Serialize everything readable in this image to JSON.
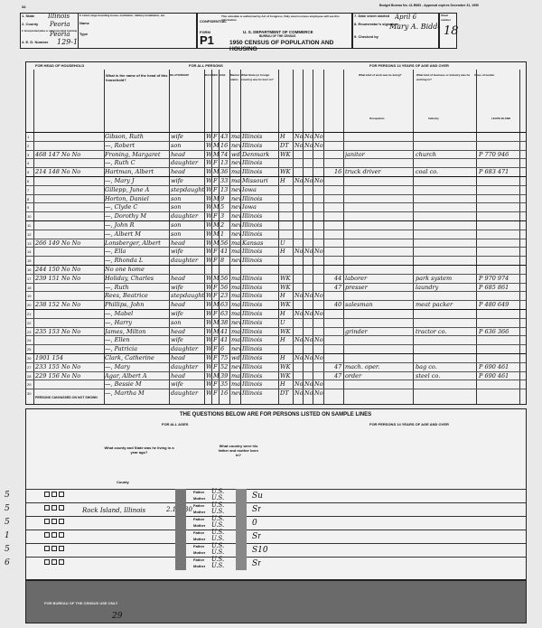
{
  "header": {
    "budget_note": "Budget Bureau No. 41-R683 - Approval expires December 31, 1950",
    "page_mark": "34",
    "state_label": "1. State",
    "state": "Illinois",
    "county_label": "2. County",
    "county": "Peoria",
    "city_label": "3. Incorporated place or unincorporated township",
    "city": "Peoria",
    "ed_label": "4. E. D. Number",
    "ed": "129-160",
    "hotel_label": "6. Hotel, large boarding house, institution, military installation, etc.",
    "name_label": "Name",
    "type_label": "Type",
    "confidential": "CONFIDENTIAL",
    "confidential_note": "This schedule is authorized by Act of Congress. Only sworn census employees will see this information.",
    "form_label": "FORM",
    "form": "P1",
    "dept": "U. S. DEPARTMENT OF COMMERCE",
    "bureau": "BUREAU OF THE CENSUS",
    "title": "1950 CENSUS OF POPULATION AND HOUSING",
    "date_label": "7. Date sheet started",
    "date": "April 6",
    "enumerator_label": "8. Enumerator's signature",
    "enumerator": "Mary A. Bidder",
    "checked_label": "9. Checked by",
    "sheet_label": "Sheet number",
    "sheet": "18"
  },
  "sections": {
    "household": "FOR HEAD OF HOUSEHOLD",
    "all_persons": "FOR ALL PERSONS",
    "over14": "FOR PERSONS 14 YEARS OF AGE AND OVER",
    "name_col": "What is the name of the head of this household?",
    "relationship_col": "RELATIONSHIP",
    "race_col": "RACE",
    "sex_col": "SEX",
    "age_col": "AGE",
    "marital_col": "Marital status",
    "birthplace_col": "What State (or foreign country) was he born in?",
    "occupation_col": "What kind of work was he doing?",
    "industry_col": "What kind of business or industry was he working in?",
    "class_col": "Class of worker",
    "leave_blank": "LEAVE BLANK",
    "occupation_sub": "Occupation",
    "industry_sub": "Industry",
    "persons_end": "PERSONS CANVASSED ON NOT SHOWN"
  },
  "persons": [
    {
      "line": "1",
      "dwell": "",
      "name": "Gibson, Ruth",
      "rel": "wife",
      "race": "W",
      "sex": "F",
      "age": "43",
      "mar": "mar",
      "birth": "Illinois",
      "c15": "H",
      "c16": "No",
      "c17": "No",
      "c18": "No",
      "hrs": "",
      "occ": "",
      "ind": "",
      "code": ""
    },
    {
      "line": "2",
      "dwell": "",
      "name": "—, Robert",
      "rel": "son",
      "race": "W",
      "sex": "M",
      "age": "16",
      "mar": "nev",
      "birth": "Illinois",
      "c15": "DT",
      "c16": "No",
      "c17": "No",
      "c18": "No",
      "hrs": "",
      "occ": "",
      "ind": "",
      "code": ""
    },
    {
      "line": "3",
      "dwell": "468 147 No No",
      "name": "Froning, Margaret",
      "rel": "head",
      "race": "W",
      "sex": "M",
      "age": "74",
      "mar": "wd",
      "birth": "Denmark",
      "c15": "WK",
      "c16": "",
      "c17": "",
      "c18": "",
      "hrs": "",
      "occ": "janitor",
      "ind": "church",
      "code": "P 770 946"
    },
    {
      "line": "4",
      "dwell": "",
      "name": "—, Ruth C",
      "rel": "daughter",
      "race": "W",
      "sex": "F",
      "age": "13",
      "mar": "nev",
      "birth": "Illinois",
      "c15": "",
      "c16": "",
      "c17": "",
      "c18": "",
      "hrs": "",
      "occ": "",
      "ind": "",
      "code": ""
    },
    {
      "line": "5",
      "dwell": "214 148 No No",
      "name": "Hartman, Albert",
      "rel": "head",
      "race": "W",
      "sex": "M",
      "age": "36",
      "mar": "mar",
      "birth": "Illinois",
      "c15": "WK",
      "c16": "",
      "c17": "",
      "c18": "",
      "hrs": "16",
      "occ": "truck driver",
      "ind": "coal co.",
      "code": "P 683 471"
    },
    {
      "line": "6",
      "dwell": "",
      "name": "—, Mary J",
      "rel": "wife",
      "race": "W",
      "sex": "F",
      "age": "33",
      "mar": "mar",
      "birth": "Missouri",
      "c15": "H",
      "c16": "No",
      "c17": "No",
      "c18": "No",
      "hrs": "",
      "occ": "",
      "ind": "",
      "code": ""
    },
    {
      "line": "7",
      "dwell": "",
      "name": "Gillepp, June A",
      "rel": "stepdaughter",
      "race": "W",
      "sex": "F",
      "age": "13",
      "mar": "nev",
      "birth": "Iowa",
      "c15": "",
      "c16": "",
      "c17": "",
      "c18": "",
      "hrs": "",
      "occ": "",
      "ind": "",
      "code": ""
    },
    {
      "line": "8",
      "dwell": "",
      "name": "Horton, Daniel",
      "rel": "son",
      "race": "W",
      "sex": "M",
      "age": "9",
      "mar": "nev",
      "birth": "Illinois",
      "c15": "",
      "c16": "",
      "c17": "",
      "c18": "",
      "hrs": "",
      "occ": "",
      "ind": "",
      "code": ""
    },
    {
      "line": "9",
      "dwell": "",
      "name": "—, Clyde C",
      "rel": "son",
      "race": "W",
      "sex": "M",
      "age": "5",
      "mar": "nev",
      "birth": "Iowa",
      "c15": "",
      "c16": "",
      "c17": "",
      "c18": "",
      "hrs": "",
      "occ": "",
      "ind": "",
      "code": ""
    },
    {
      "line": "10",
      "dwell": "",
      "name": "—, Dorothy M",
      "rel": "daughter",
      "race": "W",
      "sex": "F",
      "age": "3",
      "mar": "nev",
      "birth": "Illinois",
      "c15": "",
      "c16": "",
      "c17": "",
      "c18": "",
      "hrs": "",
      "occ": "",
      "ind": "",
      "code": ""
    },
    {
      "line": "11",
      "dwell": "",
      "name": "—, John R",
      "rel": "son",
      "race": "W",
      "sex": "M",
      "age": "2",
      "mar": "nev",
      "birth": "Illinois",
      "c15": "",
      "c16": "",
      "c17": "",
      "c18": "",
      "hrs": "",
      "occ": "",
      "ind": "",
      "code": ""
    },
    {
      "line": "12",
      "dwell": "",
      "name": "—, Albert M",
      "rel": "son",
      "race": "W",
      "sex": "M",
      "age": "1",
      "mar": "nev",
      "birth": "Illinois",
      "c15": "",
      "c16": "",
      "c17": "",
      "c18": "",
      "hrs": "",
      "occ": "",
      "ind": "",
      "code": ""
    },
    {
      "line": "13",
      "dwell": "266 149 No No",
      "name": "Lonsberger, Albert",
      "rel": "head",
      "race": "W",
      "sex": "M",
      "age": "56",
      "mar": "mar",
      "birth": "Kansas",
      "c15": "U",
      "c16": "",
      "c17": "",
      "c18": "",
      "hrs": "",
      "occ": "",
      "ind": "",
      "code": ""
    },
    {
      "line": "14",
      "dwell": "",
      "name": "—, Ella",
      "rel": "wife",
      "race": "W",
      "sex": "F",
      "age": "41",
      "mar": "mar",
      "birth": "Illinois",
      "c15": "H",
      "c16": "No",
      "c17": "No",
      "c18": "No",
      "hrs": "",
      "occ": "",
      "ind": "",
      "code": ""
    },
    {
      "line": "15",
      "dwell": "",
      "name": "—, Rhonda L",
      "rel": "daughter",
      "race": "W",
      "sex": "F",
      "age": "8",
      "mar": "nev",
      "birth": "Illinois",
      "c15": "",
      "c16": "",
      "c17": "",
      "c18": "",
      "hrs": "",
      "occ": "",
      "ind": "",
      "code": ""
    },
    {
      "line": "16",
      "dwell": "244 150 No No",
      "name": "No one home",
      "rel": "",
      "race": "",
      "sex": "",
      "age": "",
      "mar": "",
      "birth": "",
      "c15": "",
      "c16": "",
      "c17": "",
      "c18": "",
      "hrs": "",
      "occ": "",
      "ind": "",
      "code": ""
    },
    {
      "line": "17",
      "dwell": "239 151 No No",
      "name": "Holiday, Charles",
      "rel": "head",
      "race": "W",
      "sex": "M",
      "age": "56",
      "mar": "mar",
      "birth": "Illinois",
      "c15": "WK",
      "c16": "",
      "c17": "",
      "c18": "",
      "hrs": "44",
      "occ": "laborer",
      "ind": "park system",
      "code": "P 970 974"
    },
    {
      "line": "18",
      "dwell": "",
      "name": "—, Ruth",
      "rel": "wife",
      "race": "W",
      "sex": "F",
      "age": "56",
      "mar": "mar",
      "birth": "Illinois",
      "c15": "WK",
      "c16": "",
      "c17": "",
      "c18": "",
      "hrs": "47",
      "occ": "presser",
      "ind": "laundry",
      "code": "P 685 861"
    },
    {
      "line": "19",
      "dwell": "",
      "name": "Rees, Beatrice",
      "rel": "stepdaughter",
      "race": "W",
      "sex": "F",
      "age": "23",
      "mar": "mar",
      "birth": "Illinois",
      "c15": "H",
      "c16": "No",
      "c17": "No",
      "c18": "No",
      "hrs": "",
      "occ": "",
      "ind": "",
      "code": ""
    },
    {
      "line": "20",
      "dwell": "238 152 No No",
      "name": "Phillips, John",
      "rel": "head",
      "race": "W",
      "sex": "M",
      "age": "63",
      "mar": "mar",
      "birth": "Illinois",
      "c15": "WK",
      "c16": "",
      "c17": "",
      "c18": "",
      "hrs": "40",
      "occ": "salesman",
      "ind": "meat packer",
      "code": "P 480 649"
    },
    {
      "line": "21",
      "dwell": "",
      "name": "—, Mabel",
      "rel": "wife",
      "race": "W",
      "sex": "F",
      "age": "63",
      "mar": "mar",
      "birth": "Illinois",
      "c15": "H",
      "c16": "No",
      "c17": "No",
      "c18": "No",
      "hrs": "",
      "occ": "",
      "ind": "",
      "code": ""
    },
    {
      "line": "22",
      "dwell": "",
      "name": "—, Harry",
      "rel": "son",
      "race": "W",
      "sex": "M",
      "age": "38",
      "mar": "nev",
      "birth": "Illinois",
      "c15": "U",
      "c16": "",
      "c17": "",
      "c18": "",
      "hrs": "",
      "occ": "",
      "ind": "",
      "code": ""
    },
    {
      "line": "23",
      "dwell": "235 153 No No",
      "name": "James, Milton",
      "rel": "head",
      "race": "W",
      "sex": "M",
      "age": "41",
      "mar": "mar",
      "birth": "Illinois",
      "c15": "WK",
      "c16": "",
      "c17": "",
      "c18": "",
      "hrs": "",
      "occ": "grinder",
      "ind": "tractor co.",
      "code": "P 636 366"
    },
    {
      "line": "24",
      "dwell": "",
      "name": "—, Ellen",
      "rel": "wife",
      "race": "W",
      "sex": "F",
      "age": "41",
      "mar": "mar",
      "birth": "Illinois",
      "c15": "H",
      "c16": "No",
      "c17": "No",
      "c18": "No",
      "hrs": "",
      "occ": "",
      "ind": "",
      "code": ""
    },
    {
      "line": "25",
      "dwell": "",
      "name": "—, Patricia",
      "rel": "daughter",
      "race": "W",
      "sex": "F",
      "age": "6",
      "mar": "nev",
      "birth": "Illinois",
      "c15": "",
      "c16": "",
      "c17": "",
      "c18": "",
      "hrs": "",
      "occ": "",
      "ind": "",
      "code": ""
    },
    {
      "line": "26",
      "dwell": "1901 154",
      "name": "Clark, Catherine",
      "rel": "head",
      "race": "W",
      "sex": "F",
      "age": "75",
      "mar": "wd",
      "birth": "Illinois",
      "c15": "H",
      "c16": "No",
      "c17": "No",
      "c18": "No",
      "hrs": "",
      "occ": "",
      "ind": "",
      "code": ""
    },
    {
      "line": "27",
      "dwell": "233 155 No No",
      "name": "—, Mary",
      "rel": "daughter",
      "race": "W",
      "sex": "F",
      "age": "52",
      "mar": "nev",
      "birth": "Illinois",
      "c15": "WK",
      "c16": "",
      "c17": "",
      "c18": "",
      "hrs": "47",
      "occ": "mach. oper.",
      "ind": "bag co.",
      "code": "P 690 461"
    },
    {
      "line": "28",
      "dwell": "229 156 No No",
      "name": "Agar, Albert A",
      "rel": "head",
      "race": "W",
      "sex": "M",
      "age": "39",
      "mar": "mar",
      "birth": "Illinois",
      "c15": "WK",
      "c16": "",
      "c17": "",
      "c18": "",
      "hrs": "47",
      "occ": "order",
      "ind": "steel co.",
      "code": "P 690 461"
    },
    {
      "line": "29",
      "dwell": "",
      "name": "—, Bessie M",
      "rel": "wife",
      "race": "W",
      "sex": "F",
      "age": "35",
      "mar": "mar",
      "birth": "Illinois",
      "c15": "H",
      "c16": "No",
      "c17": "No",
      "c18": "No",
      "hrs": "",
      "occ": "",
      "ind": "",
      "code": ""
    },
    {
      "line": "30",
      "dwell": "",
      "name": "—, Martha M",
      "rel": "daughter",
      "race": "W",
      "sex": "F",
      "age": "16",
      "mar": "nev",
      "birth": "Illinois",
      "c15": "DT",
      "c16": "No",
      "c17": "No",
      "c18": "No",
      "hrs": "",
      "occ": "",
      "ind": "",
      "code": ""
    }
  ],
  "sample": {
    "title": "THE QUESTIONS BELOW ARE FOR PERSONS LISTED ON SAMPLE LINES",
    "all_ages": "FOR ALL AGES",
    "over14": "FOR PERSONS 14 YEARS OF AGE AND OVER",
    "residence_q": "What county and State was he living in a year ago?",
    "parents_q": "What country were his father and mother born in?",
    "father_label": "Father",
    "mother_label": "Mother",
    "county_label": "County",
    "lines": [
      {
        "mark": "5",
        "father": "U.S.",
        "mother": "U.S.",
        "residence": "",
        "code": "",
        "school": "Su"
      },
      {
        "mark": "5",
        "father": "U.S.",
        "mother": "U.S.",
        "residence": "Rock Island, Illinois",
        "code": "2.19330",
        "school": "Sr"
      },
      {
        "mark": "5",
        "father": "U.S.",
        "mother": "U.S.",
        "residence": "",
        "code": "",
        "school": "0"
      },
      {
        "mark": "1",
        "father": "U.S.",
        "mother": "U.S.",
        "residence": "",
        "code": "",
        "school": "Sr"
      },
      {
        "mark": "5",
        "father": "U.S.",
        "mother": "U.S.",
        "residence": "",
        "code": "",
        "school": "S10"
      },
      {
        "mark": "6",
        "father": "U.S.",
        "mother": "U.S.",
        "residence": "",
        "code": "",
        "school": "Sr"
      }
    ],
    "office_use": "FOR BUREAU OF THE CENSUS USE ONLY",
    "footer_num": "29"
  }
}
